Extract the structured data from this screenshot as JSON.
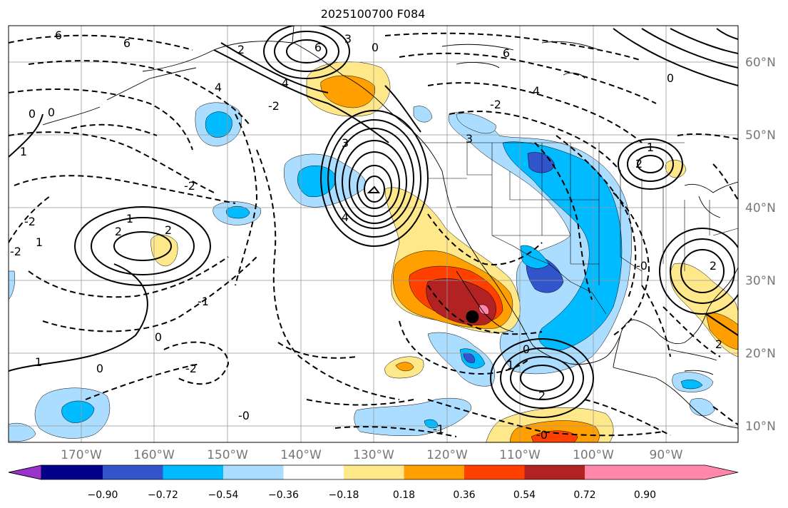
{
  "title": "2025100700 F084",
  "map": {
    "lon_labels": [
      "170°W",
      "160°W",
      "150°W",
      "140°W",
      "130°W",
      "120°W",
      "110°W",
      "100°W",
      "90°W"
    ],
    "lat_labels": [
      "60°N",
      "50°N",
      "40°N",
      "30°N",
      "20°N",
      "10°N"
    ],
    "marker": {
      "name": "point-marker",
      "lon": -116.5,
      "lat": 25.0
    }
  },
  "colorbar": {
    "ticks": [
      "−0.90",
      "−0.72",
      "−0.54",
      "−0.36",
      "−0.18",
      "0.18",
      "0.36",
      "0.54",
      "0.72",
      "0.90"
    ],
    "colors": [
      "#9933cc",
      "#000088",
      "#3355cc",
      "#00bbff",
      "#aaddff",
      "#ffffff",
      "#ffe88a",
      "#ffa000",
      "#ff4000",
      "#b22222",
      "#ff88aa"
    ]
  },
  "contour_labels": [
    {
      "id": "c1",
      "text": "6"
    },
    {
      "id": "c2",
      "text": "6"
    },
    {
      "id": "c3",
      "text": "4"
    },
    {
      "id": "c4",
      "text": "3"
    },
    {
      "id": "c5",
      "text": "0"
    },
    {
      "id": "c6",
      "text": "6"
    },
    {
      "id": "c7",
      "text": "4"
    },
    {
      "id": "c8",
      "text": "3"
    },
    {
      "id": "c9",
      "text": "2"
    },
    {
      "id": "c10",
      "text": "-2"
    },
    {
      "id": "c11",
      "text": "0"
    },
    {
      "id": "c12",
      "text": "4"
    },
    {
      "id": "c13",
      "text": "-2"
    },
    {
      "id": "c14",
      "text": "-2"
    },
    {
      "id": "c15",
      "text": "1"
    },
    {
      "id": "c16",
      "text": "2"
    },
    {
      "id": "c17",
      "text": "2"
    },
    {
      "id": "c18",
      "text": "-2"
    },
    {
      "id": "c19",
      "text": "1"
    },
    {
      "id": "c20",
      "text": "1"
    },
    {
      "id": "c21",
      "text": "0"
    },
    {
      "id": "c22",
      "text": "1"
    },
    {
      "id": "c23",
      "text": "0"
    },
    {
      "id": "c24",
      "text": "-2"
    },
    {
      "id": "c25",
      "text": "-1"
    },
    {
      "id": "c26",
      "text": "0"
    },
    {
      "id": "c27",
      "text": "-0"
    },
    {
      "id": "c28",
      "text": "3"
    },
    {
      "id": "c29",
      "text": "6"
    },
    {
      "id": "c30",
      "text": "4"
    },
    {
      "id": "c31",
      "text": "-2"
    },
    {
      "id": "c32",
      "text": "-0"
    },
    {
      "id": "c33",
      "text": "-1"
    },
    {
      "id": "c34",
      "text": "2"
    },
    {
      "id": "c35",
      "text": "1"
    },
    {
      "id": "c36",
      "text": "2"
    },
    {
      "id": "c37",
      "text": "2"
    },
    {
      "id": "c38",
      "text": "0"
    },
    {
      "id": "c39",
      "text": "1"
    },
    {
      "id": "c40",
      "text": "-0"
    },
    {
      "id": "c41",
      "text": "0"
    },
    {
      "id": "c42",
      "text": "2"
    }
  ]
}
